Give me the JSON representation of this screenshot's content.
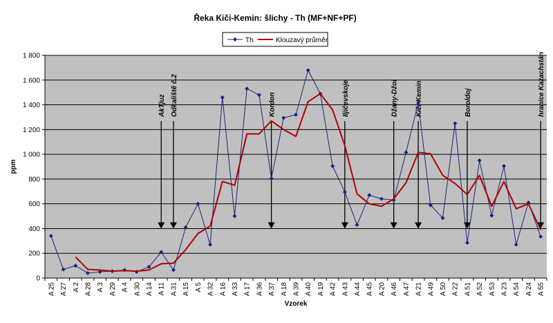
{
  "chart_data": {
    "type": "line",
    "title": "Řeka Kiči-Kemin: šlichy - Th (MF+NF+PF)",
    "xlabel": "Vzorek",
    "ylabel": "ppm",
    "ylim": [
      0,
      1800
    ],
    "yticks": [
      "0",
      "200",
      "400",
      "600",
      "800",
      "1 000",
      "1 200",
      "1 400",
      "1 600",
      "1 800"
    ],
    "grid": true,
    "legend_position": "top-center",
    "categories": [
      "A 25",
      "A 27",
      "A 2",
      "A 28",
      "A 3",
      "A 29",
      "A 4",
      "A 30",
      "A 14",
      "A 11",
      "A 31",
      "A 15",
      "A 5",
      "A 32",
      "A 16",
      "A 33",
      "A 17",
      "A 36",
      "A 37",
      "A 18",
      "A 39",
      "A 40",
      "A 19",
      "A 42",
      "A 43",
      "A 44",
      "A 45",
      "A 20",
      "A 46",
      "A 47",
      "A 21",
      "A 49",
      "A 50",
      "A 22",
      "A 51",
      "A 52",
      "A 53",
      "A 23",
      "A 54",
      "A 24",
      "A 55"
    ],
    "series": [
      {
        "name": "Th",
        "color": "#1a237e",
        "marker": "diamond",
        "values": [
          340,
          70,
          100,
          40,
          50,
          55,
          65,
          50,
          90,
          210,
          65,
          410,
          600,
          270,
          1460,
          500,
          1530,
          1480,
          805,
          1295,
          1320,
          1680,
          1490,
          905,
          695,
          430,
          670,
          640,
          630,
          1015,
          1415,
          590,
          485,
          1250,
          285,
          950,
          505,
          905,
          270,
          610,
          335
        ]
      },
      {
        "name": "Klouzavý průměr",
        "color": "#b00000",
        "marker": "none",
        "values": [
          null,
          null,
          170,
          70,
          65,
          55,
          60,
          55,
          65,
          115,
          120,
          230,
          360,
          420,
          780,
          750,
          1165,
          1165,
          1270,
          1200,
          1145,
          1425,
          1490,
          1360,
          1070,
          680,
          600,
          580,
          640,
          770,
          1015,
          1005,
          830,
          765,
          675,
          830,
          580,
          780,
          560,
          600,
          390
        ]
      }
    ],
    "annotations": [
      {
        "label": "AkTjuz",
        "category": "A 11"
      },
      {
        "label": "Odkaliště č.2",
        "category": "A 31"
      },
      {
        "label": "Kordon",
        "category": "A 37"
      },
      {
        "label": "Iljičevskoje",
        "category": "A 43"
      },
      {
        "label": "Džany-Džol",
        "category": "A 46"
      },
      {
        "label": "Kiči-Kemin",
        "category": "A 21"
      },
      {
        "label": "Boroldoj",
        "category": "A 51"
      },
      {
        "label": "hranice Kazachstán",
        "category": "A 55"
      }
    ],
    "annotation_arrow_tip_value": 400
  }
}
